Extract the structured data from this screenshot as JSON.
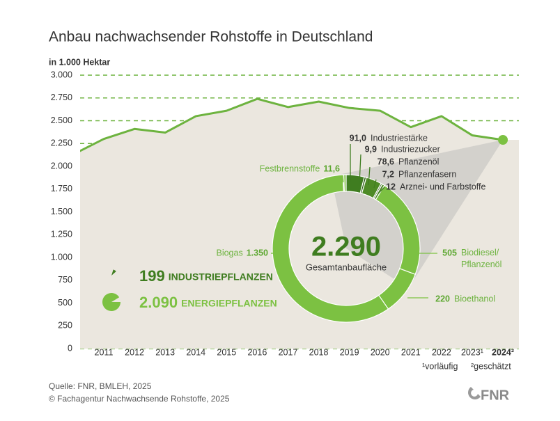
{
  "chart_data": [
    {
      "type": "area-line",
      "title": "Anbau nachwachsender Rohstoffe in Deutschland",
      "y_label": "in 1.000 Hektar",
      "categories": [
        null,
        "2011",
        "2012",
        "2013",
        "2014",
        "2015",
        "2016",
        "2017",
        "2018",
        "2019",
        "2020",
        "2021",
        "2022",
        "2023¹",
        "2024²"
      ],
      "values": [
        2130,
        2300,
        2410,
        2370,
        2550,
        2610,
        2740,
        2650,
        2710,
        2640,
        2610,
        2430,
        2550,
        2340,
        2290
      ],
      "color": "#6db33f",
      "area_color": "#ebe7df",
      "ylim": [
        0,
        3000
      ],
      "yticks": [
        0,
        250,
        500,
        750,
        {
          "value": 1000,
          "label": "1.000"
        },
        {
          "value": 1250,
          "label": "1.250"
        },
        {
          "value": 1500,
          "label": "1.500"
        },
        {
          "value": 1750,
          "label": "1.750"
        },
        {
          "value": 2000,
          "label": "2.000"
        },
        {
          "value": 2250,
          "label": "2.250"
        },
        {
          "value": 2500,
          "label": "2.500"
        },
        {
          "value": 2750,
          "label": "2.750"
        },
        {
          "value": 3000,
          "label": "3.000"
        }
      ],
      "grid": true,
      "footnotes": [
        "¹vorläufig",
        "²geschätzt"
      ]
    },
    {
      "type": "donut",
      "total": {
        "value": 2290,
        "label": "2.290"
      },
      "center_label": "Gesamtanbaufläche",
      "categories": [
        "Festbrennstoffe",
        "Industriestärke",
        "Industriezucker",
        "Pflanzenöl",
        "Pflanzenfasern",
        "Arznei- und Farbstoffe",
        "Biodiesel/ Pflanzenöl",
        "Bioethanol",
        "Biogas"
      ],
      "values": [
        11.6,
        91.0,
        9.9,
        78.6,
        7.2,
        12,
        505,
        220,
        1350
      ],
      "value_labels": [
        "11,6",
        "91,0",
        "9,9",
        "78,6",
        "7,2",
        "12",
        "505",
        "220",
        "1.350"
      ],
      "colors": [
        "#7cc142",
        "#3f7d20",
        "#2f6116",
        "#4d8a26",
        "#2f6116",
        "#4d8a26",
        "#7cc142",
        "#7cc142",
        "#7cc142"
      ],
      "groups": [
        {
          "value": 199,
          "label": "199",
          "name": "INDUSTRIEPFLANZEN",
          "color": "#3f7d20"
        },
        {
          "value": 2090,
          "label": "2.090",
          "name": "ENERGIEPFLANZEN",
          "color": "#7cc142"
        }
      ]
    }
  ],
  "source": "Quelle: FNR, BMLEH, 2025",
  "copyright": "© Fachagentur Nachwachsende Rohstoffe, 2025",
  "logo": "FNR"
}
